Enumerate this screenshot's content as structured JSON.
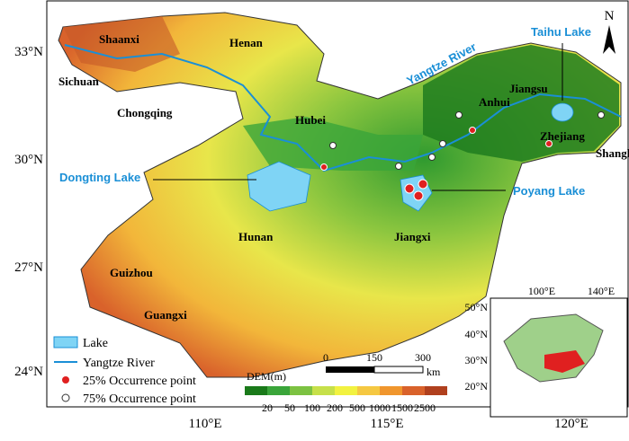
{
  "axes": {
    "lat_labels": [
      "33°N",
      "30°N",
      "27°N",
      "24°N"
    ],
    "lon_labels": [
      "110°E",
      "115°E",
      "120°E"
    ]
  },
  "north_arrow": "N",
  "regions": {
    "shaanxi": "Shaanxi",
    "henan": "Henan",
    "sichuan": "Sichuan",
    "chongqing": "Chongqing",
    "hubei": "Hubei",
    "anhui": "Anhui",
    "jiangsu": "Jiangsu",
    "zhejiang": "Zhejiang",
    "shanghai": "Shanghai",
    "hunan": "Hunan",
    "jiangxi": "Jiangxi",
    "guizhou": "Guizhou",
    "guangxi": "Guangxi"
  },
  "water_labels": {
    "taihu": "Taihu Lake",
    "yangtze": "Yangtze River",
    "dongting": "Dongting Lake",
    "poyang": "Poyang Lake"
  },
  "legend": {
    "items": [
      "Lake",
      "Yangtze River",
      "25% Occurrence point",
      "75% Occurrence point"
    ],
    "dem_title": "DEM(m)",
    "dem_classes": [
      20,
      50,
      100,
      200,
      500,
      1000,
      1500,
      2500
    ]
  },
  "scale_bar": {
    "ticks": [
      0,
      150,
      300
    ],
    "unit": "km"
  },
  "inset": {
    "lat_labels": [
      "50°N",
      "40°N",
      "30°N",
      "20°N"
    ],
    "lon_labels": [
      "100°E",
      "140°E"
    ]
  }
}
